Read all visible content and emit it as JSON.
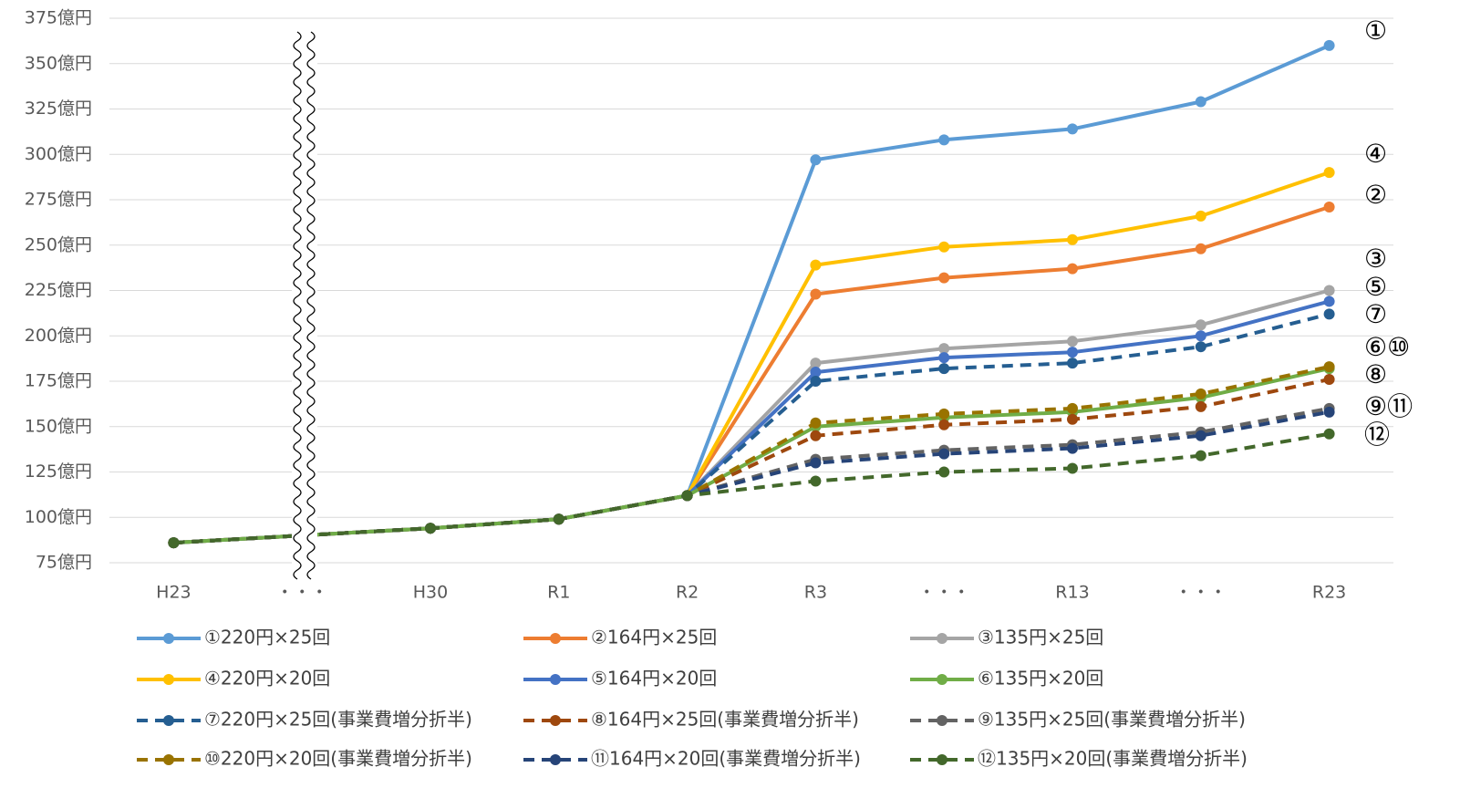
{
  "chart_data": {
    "type": "line",
    "categories": [
      "H23",
      "・・・",
      "H30",
      "R1",
      "R2",
      "R3",
      "・・・",
      "R13",
      "・・・",
      "R23"
    ],
    "ylim": [
      75,
      375
    ],
    "yticks": [
      {
        "value": 75,
        "label": "75億円"
      },
      {
        "value": 100,
        "label": "100億円"
      },
      {
        "value": 125,
        "label": "125億円"
      },
      {
        "value": 150,
        "label": "150億円"
      },
      {
        "value": 175,
        "label": "175億円"
      },
      {
        "value": 200,
        "label": "200億円"
      },
      {
        "value": 225,
        "label": "225億円"
      },
      {
        "value": 250,
        "label": "250億円"
      },
      {
        "value": 275,
        "label": "275億円"
      },
      {
        "value": 300,
        "label": "300億円"
      },
      {
        "value": 325,
        "label": "325億円"
      },
      {
        "value": 350,
        "label": "350億円"
      },
      {
        "value": 375,
        "label": "375億円"
      }
    ],
    "grid": true,
    "series": [
      {
        "name": "①220円×25回",
        "color": "#5b9bd5",
        "dashed": false,
        "values": [
          86,
          90,
          94,
          99,
          112,
          297,
          308,
          314,
          329,
          360
        ]
      },
      {
        "name": "②164円×25回",
        "color": "#ed7d31",
        "dashed": false,
        "values": [
          86,
          90,
          94,
          99,
          112,
          223,
          232,
          237,
          248,
          271
        ]
      },
      {
        "name": "③135円×25回",
        "color": "#a5a5a5",
        "dashed": false,
        "values": [
          86,
          90,
          94,
          99,
          112,
          185,
          193,
          197,
          206,
          225
        ]
      },
      {
        "name": "④220円×20回",
        "color": "#ffc000",
        "dashed": false,
        "values": [
          86,
          90,
          94,
          99,
          112,
          239,
          249,
          253,
          266,
          290
        ]
      },
      {
        "name": "⑤164円×20回",
        "color": "#4472c4",
        "dashed": false,
        "values": [
          86,
          90,
          94,
          99,
          112,
          180,
          188,
          191,
          200,
          219
        ]
      },
      {
        "name": "⑥135円×20回",
        "color": "#70ad47",
        "dashed": false,
        "values": [
          86,
          90,
          94,
          99,
          112,
          150,
          155,
          158,
          166,
          182
        ]
      },
      {
        "name": "⑦220円×25回(事業費増分折半)",
        "color": "#255e91",
        "dashed": true,
        "values": [
          86,
          90,
          94,
          99,
          112,
          175,
          182,
          185,
          194,
          212
        ]
      },
      {
        "name": "⑧164円×25回(事業費増分折半)",
        "color": "#9e480e",
        "dashed": true,
        "values": [
          86,
          90,
          94,
          99,
          112,
          145,
          151,
          154,
          161,
          176
        ]
      },
      {
        "name": "⑨135円×25回(事業費増分折半)",
        "color": "#636363",
        "dashed": true,
        "values": [
          86,
          90,
          94,
          99,
          112,
          132,
          137,
          140,
          147,
          160
        ]
      },
      {
        "name": "⑩220円×20回(事業費増分折半)",
        "color": "#997300",
        "dashed": true,
        "values": [
          86,
          90,
          94,
          99,
          112,
          152,
          157,
          160,
          168,
          183
        ]
      },
      {
        "name": "⑪164円×20回(事業費増分折半)",
        "color": "#264478",
        "dashed": true,
        "values": [
          86,
          90,
          94,
          99,
          112,
          130,
          135,
          138,
          145,
          158
        ]
      },
      {
        "name": "⑫135円×20回(事業費増分折半)",
        "color": "#43682b",
        "dashed": true,
        "values": [
          86,
          90,
          94,
          99,
          112,
          120,
          125,
          127,
          134,
          146
        ]
      }
    ],
    "annotations": [
      "①",
      "④",
      "②",
      "③",
      "⑤",
      "⑦",
      "⑥⑩",
      "⑧",
      "⑨⑪",
      "⑫"
    ]
  }
}
